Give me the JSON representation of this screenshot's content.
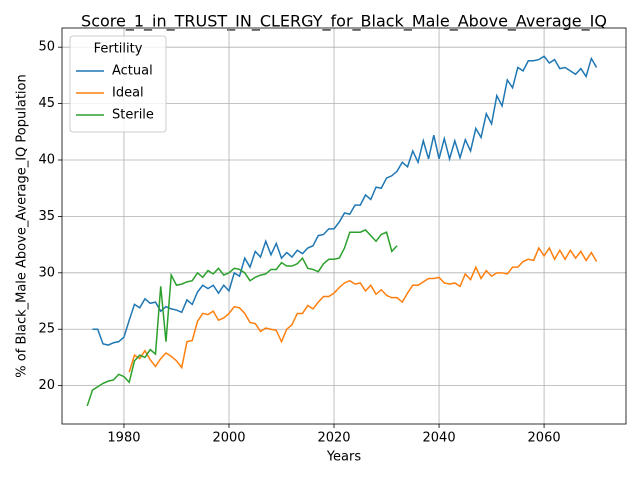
{
  "chart_data": {
    "type": "line",
    "title": "Score_1_in_TRUST_IN_CLERGY_for_Black_Male_Above_Average_IQ",
    "x_label": "Years",
    "y_label": "% of Black_Male Above_Average_IQ Population",
    "legend_title": "Fertility",
    "legend": "upper left",
    "grid": true,
    "xlim": [
      1968.2,
      2075.6
    ],
    "ylim": [
      16.6,
      51.7
    ],
    "xticks": [
      1980,
      2000,
      2020,
      2040,
      2060
    ],
    "yticks": [
      20,
      25,
      30,
      35,
      40,
      45,
      50
    ],
    "series": [
      {
        "name": "Actual",
        "color": "#1f77b4",
        "x": [
          1974,
          1975,
          1976,
          1977,
          1978,
          1979,
          1980,
          1981,
          1982,
          1983,
          1984,
          1985,
          1986,
          1987,
          1988,
          1989,
          1990,
          1991,
          1992,
          1993,
          1994,
          1995,
          1996,
          1997,
          1998,
          1999,
          2000,
          2001,
          2002,
          2003,
          2004,
          2005,
          2006,
          2007,
          2008,
          2009,
          2010,
          2011,
          2012,
          2013,
          2014,
          2015,
          2016,
          2017,
          2018,
          2019,
          2020,
          2021,
          2022,
          2023,
          2024,
          2025,
          2026,
          2027,
          2028,
          2029,
          2030,
          2031,
          2032,
          2033,
          2034,
          2035,
          2036,
          2037,
          2038,
          2039,
          2040,
          2041,
          2042,
          2043,
          2044,
          2045,
          2046,
          2047,
          2048,
          2049,
          2050,
          2051,
          2052,
          2053,
          2054,
          2055,
          2056,
          2057,
          2058,
          2059,
          2060,
          2061,
          2062,
          2063,
          2064,
          2065,
          2066,
          2067,
          2068,
          2069,
          2070
        ],
        "values": [
          25,
          25,
          23.7,
          23.6,
          23.8,
          23.9,
          24.3,
          25.8,
          27.2,
          26.9,
          27.7,
          27.3,
          27.4,
          26.6,
          27.0,
          26.8,
          26.7,
          26.5,
          27.6,
          27.2,
          28.3,
          28.9,
          28.6,
          28.9,
          28.2,
          28.9,
          28.4,
          30.0,
          29.7,
          31.3,
          30.5,
          31.9,
          31.4,
          32.8,
          31.6,
          32.6,
          31.3,
          31.8,
          31.4,
          32.0,
          31.7,
          32.2,
          32.4,
          33.3,
          33.4,
          33.9,
          33.9,
          34.5,
          35.3,
          35.2,
          36.0,
          36.0,
          36.9,
          36.5,
          37.6,
          37.5,
          38.4,
          38.6,
          39.0,
          39.8,
          39.4,
          40.8,
          39.8,
          41.7,
          40.1,
          42.2,
          40.1,
          41.9,
          40.1,
          41.7,
          40.2,
          41.8,
          40.8,
          42.8,
          42.0,
          44.1,
          43.2,
          45.7,
          44.8,
          47.1,
          46.4,
          48.2,
          47.9,
          48.8,
          48.8,
          48.9,
          49.2,
          48.6,
          48.9,
          48.1,
          48.2,
          47.9,
          47.6,
          48.1,
          47.4,
          49.0,
          48.2
        ]
      },
      {
        "name": "Ideal",
        "color": "#ff7f0e",
        "x": [
          1981,
          1982,
          1983,
          1984,
          1985,
          1986,
          1987,
          1988,
          1989,
          1990,
          1991,
          1992,
          1993,
          1994,
          1995,
          1996,
          1997,
          1998,
          1999,
          2000,
          2001,
          2002,
          2003,
          2004,
          2005,
          2006,
          2007,
          2008,
          2009,
          2010,
          2011,
          2012,
          2013,
          2014,
          2015,
          2016,
          2017,
          2018,
          2019,
          2020,
          2021,
          2022,
          2023,
          2024,
          2025,
          2026,
          2027,
          2028,
          2029,
          2030,
          2031,
          2032,
          2033,
          2034,
          2035,
          2036,
          2037,
          2038,
          2039,
          2040,
          2041,
          2042,
          2043,
          2044,
          2045,
          2046,
          2047,
          2048,
          2049,
          2050,
          2051,
          2052,
          2053,
          2054,
          2055,
          2056,
          2057,
          2058,
          2059,
          2060,
          2061,
          2062,
          2063,
          2064,
          2065,
          2066,
          2067,
          2068,
          2069,
          2070
        ],
        "values": [
          21.2,
          22.7,
          22.4,
          23.1,
          22.3,
          21.7,
          22.4,
          22.9,
          22.6,
          22.2,
          21.6,
          23.9,
          24.0,
          25.7,
          26.4,
          26.3,
          26.6,
          25.8,
          26.0,
          26.4,
          27.0,
          26.9,
          26.4,
          25.6,
          25.5,
          24.8,
          25.1,
          25.0,
          24.9,
          23.9,
          25.0,
          25.4,
          26.4,
          26.4,
          27.1,
          26.8,
          27.4,
          27.9,
          27.9,
          28.2,
          28.7,
          29.1,
          29.3,
          29.0,
          29.1,
          28.4,
          28.9,
          28.1,
          28.5,
          28.0,
          27.8,
          27.8,
          27.4,
          28.2,
          28.9,
          28.9,
          29.2,
          29.5,
          29.5,
          29.6,
          29.1,
          29.0,
          29.1,
          28.8,
          29.9,
          29.4,
          30.5,
          29.5,
          30.2,
          29.7,
          30.0,
          30.0,
          29.9,
          30.5,
          30.5,
          31.0,
          31.2,
          31.1,
          32.2,
          31.5,
          32.2,
          31.2,
          32.0,
          31.2,
          32.0,
          31.3,
          31.9,
          31.1,
          31.8,
          31.0
        ]
      },
      {
        "name": "Sterile",
        "color": "#2ca02c",
        "x": [
          1973,
          1974,
          1975,
          1976,
          1977,
          1978,
          1979,
          1980,
          1981,
          1982,
          1983,
          1984,
          1985,
          1986,
          1987,
          1988,
          1989,
          1990,
          1991,
          1992,
          1993,
          1994,
          1995,
          1996,
          1997,
          1998,
          1999,
          2000,
          2001,
          2002,
          2003,
          2004,
          2005,
          2006,
          2007,
          2008,
          2009,
          2010,
          2011,
          2012,
          2013,
          2014,
          2015,
          2016,
          2017,
          2018,
          2019,
          2020,
          2021,
          2022,
          2023,
          2024,
          2025,
          2026,
          2027,
          2028,
          2029,
          2030,
          2031,
          2032
        ],
        "values": [
          18.2,
          19.6,
          19.9,
          20.2,
          20.4,
          20.5,
          21.0,
          20.8,
          20.3,
          22.2,
          22.7,
          22.5,
          23.2,
          22.8,
          28.8,
          23.9,
          29.8,
          28.9,
          29.0,
          29.2,
          29.3,
          30.0,
          29.6,
          30.2,
          29.9,
          30.4,
          29.8,
          30.0,
          30.4,
          30.3,
          30.0,
          29.3,
          29.6,
          29.8,
          29.9,
          30.3,
          30.3,
          30.9,
          30.6,
          30.6,
          30.8,
          31.3,
          30.4,
          30.3,
          30.1,
          30.8,
          31.2,
          31.2,
          31.3,
          32.2,
          33.6,
          33.6,
          33.6,
          33.8,
          33.3,
          32.8,
          33.4,
          33.6,
          31.9,
          32.4
        ]
      }
    ]
  }
}
